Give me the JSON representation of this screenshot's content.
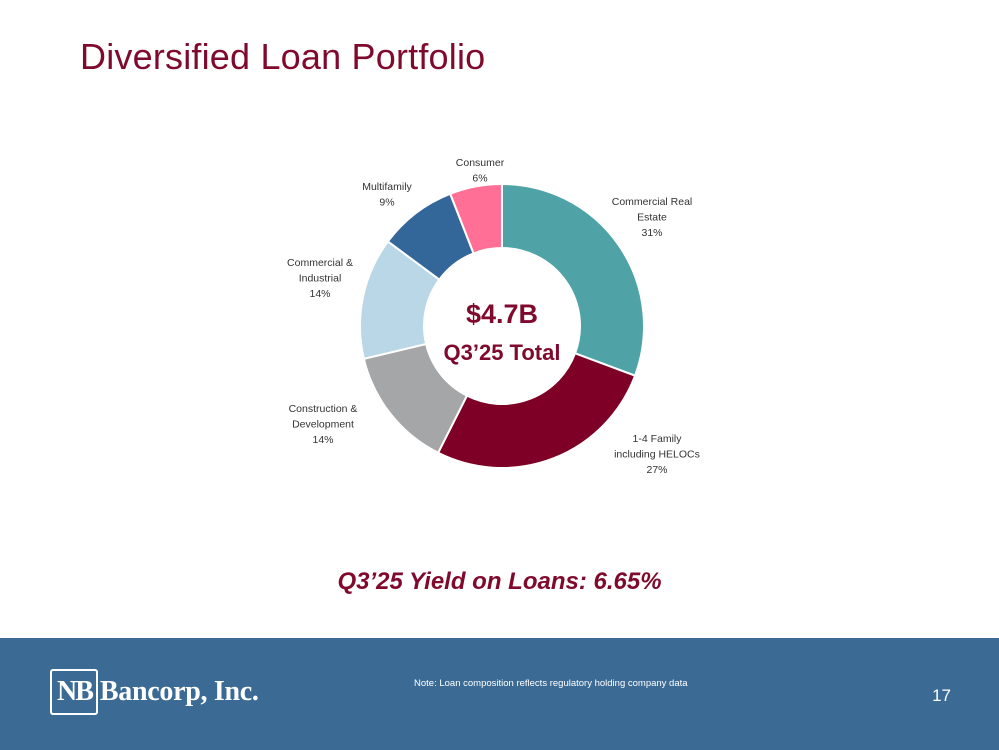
{
  "title": "Diversified Loan Portfolio",
  "chart_data": {
    "type": "donut",
    "categories": [
      "Commercial Real Estate",
      "1-4 Family including HELOCs",
      "Construction & Development",
      "Commercial & Industrial",
      "Multifamily",
      "Consumer"
    ],
    "values": [
      31,
      27,
      14,
      14,
      9,
      6
    ],
    "unit": "%",
    "labels": [
      {
        "lines": [
          "Commercial Real",
          "Estate",
          "31%"
        ]
      },
      {
        "lines": [
          "1-4 Family",
          "including HELOCs",
          "27%"
        ]
      },
      {
        "lines": [
          "Construction &",
          "Development",
          "14%"
        ]
      },
      {
        "lines": [
          "Commercial &",
          "Industrial",
          "14%"
        ]
      },
      {
        "lines": [
          "Multifamily",
          "9%"
        ]
      },
      {
        "lines": [
          "Consumer",
          "6%"
        ]
      }
    ],
    "colors": [
      "#4fa3a7",
      "#7f0026",
      "#a5a6a8",
      "#b9d7e6",
      "#336699",
      "#ff6f96"
    ],
    "center_value": "$4.7B",
    "center_label": "Q3’25 Total"
  },
  "yield_text": "Q3’25 Yield on Loans: 6.65%",
  "footer": {
    "logo_mark": "NB",
    "logo_name": "Bancorp, Inc.",
    "note": "Note: Loan composition reflects regulatory holding company data",
    "page_number": "17"
  }
}
